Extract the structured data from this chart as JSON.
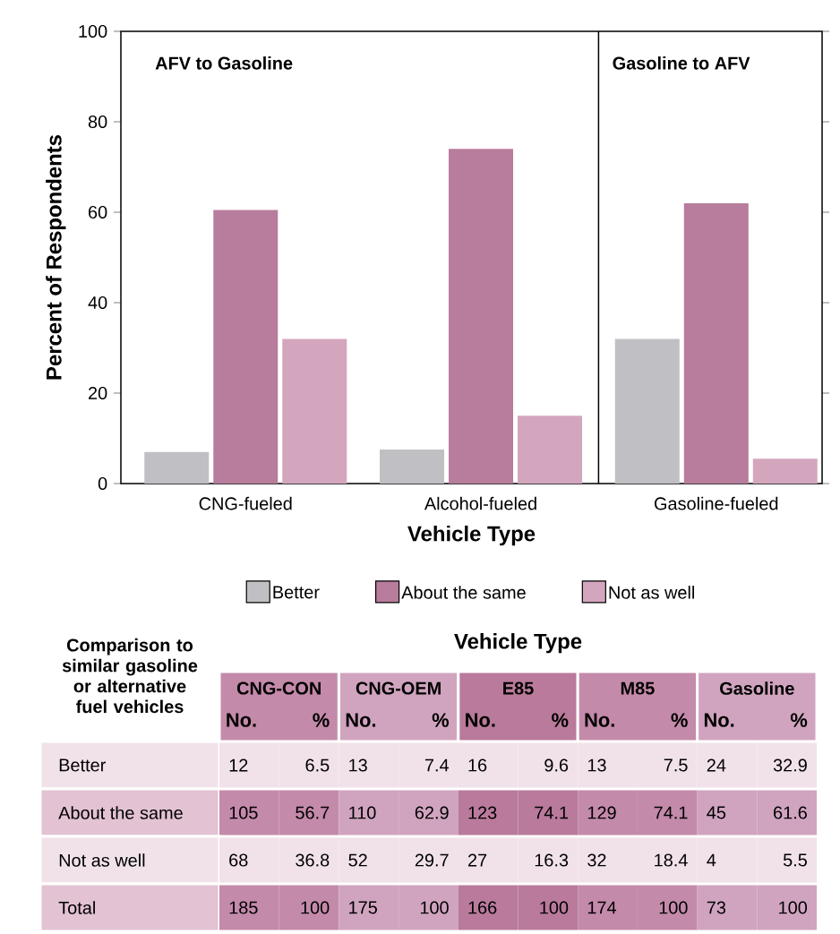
{
  "chart_data": [
    {
      "type": "bar",
      "xlabel": "Vehicle Type",
      "ylabel": "Percent of Respondents",
      "categories": [
        "CNG-fueled",
        "Alcohol-fueled",
        "Gasoline-fueled"
      ],
      "series": [
        {
          "name": "Better",
          "color": "#c0c0c4",
          "values": [
            7,
            7.5,
            32
          ]
        },
        {
          "name": "About the same",
          "color": "#b87c9c",
          "values": [
            60.5,
            74,
            62
          ]
        },
        {
          "name": "Not as well",
          "color": "#d4a6be",
          "values": [
            32,
            15,
            5.5
          ]
        }
      ],
      "ylim": [
        0,
        100
      ],
      "yticks": [
        0,
        20,
        40,
        60,
        80,
        100
      ],
      "grid": false,
      "legend": "bottom",
      "annotations": [
        "AFV to Gasoline",
        "Gasoline to AFV"
      ]
    },
    {
      "type": "heatmap",
      "title": "Vehicle Type",
      "ylabel": "Comparison to similar gasoline or alternative fuel vehicles",
      "categories": [
        "No.",
        "%",
        "No.",
        "%",
        "No.",
        "%",
        "No.",
        "%",
        "No.",
        "%"
      ],
      "annotations": [
        "CNG-CON",
        "CNG-OEM",
        "E85",
        "M85",
        "Gasoline"
      ],
      "y_categories": [
        "Better",
        "About the same",
        "Not as well",
        "Total"
      ],
      "cells": [
        [
          12,
          6.5,
          13,
          7.4,
          16,
          9.6,
          13,
          7.5,
          24,
          32.9
        ],
        [
          105,
          56.7,
          110,
          62.9,
          123,
          74.1,
          129,
          74.1,
          45,
          61.6
        ],
        [
          68,
          36.8,
          52,
          29.7,
          27,
          16.3,
          32,
          18.4,
          4,
          5.5
        ],
        [
          185,
          100,
          175,
          100,
          166,
          100,
          174,
          100,
          73,
          100
        ]
      ],
      "data_labels": true
    }
  ]
}
